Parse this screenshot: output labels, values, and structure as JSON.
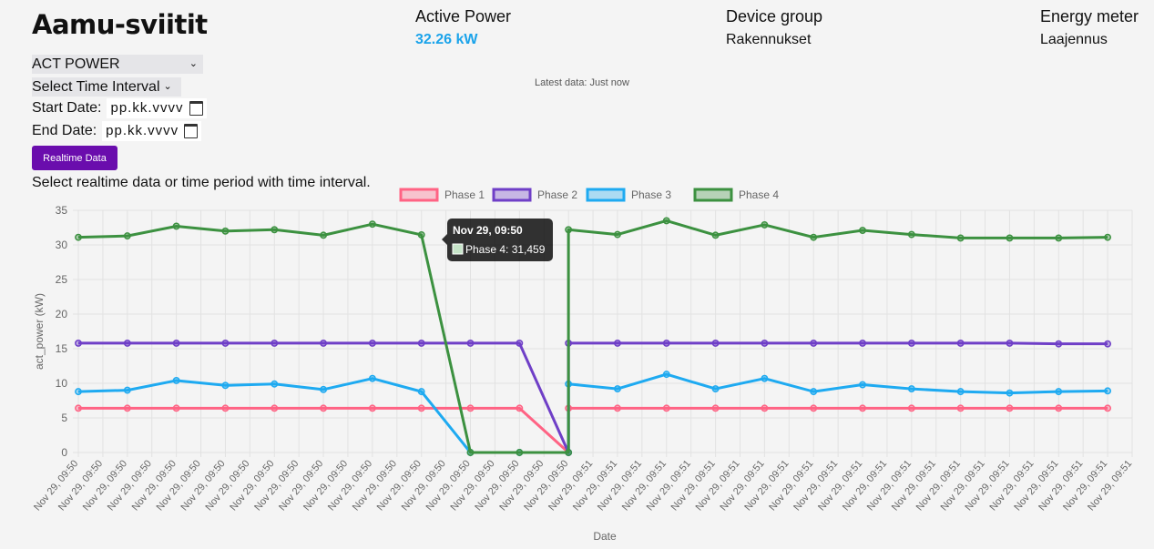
{
  "header": {
    "title": "Aamu-sviitit",
    "active_power_label": "Active Power",
    "active_power_value": "32.26 kW",
    "device_group_label": "Device group",
    "device_group_value": "Rakennukset",
    "energy_meter_label": "Energy meter",
    "energy_meter_value": "Laajennus",
    "latest_data": "Latest data: Just now"
  },
  "controls": {
    "metric_select": "ACT POWER",
    "interval_select": "Select Time Interval",
    "start_label": "Start Date:",
    "start_placeholder": "pp.kk.vvvv",
    "end_label": "End Date:",
    "end_placeholder": "pp.kk.vvvv",
    "realtime_button": "Realtime Data",
    "hint": "Select realtime data or time period with time interval."
  },
  "colors": {
    "accent": "#1aa3ea",
    "button": "#6a0dad",
    "phase1": "#ff6384",
    "phase2": "#6f3fc7",
    "phase3": "#1eaaf1",
    "phase4": "#3c9140"
  },
  "chart_data": {
    "type": "line",
    "xlabel": "Date",
    "ylabel": "act_power (kW)",
    "ylim": [
      0,
      35
    ],
    "yticks": [
      0,
      5,
      10,
      15,
      20,
      25,
      30,
      35
    ],
    "grid": true,
    "legend_position": "top",
    "categories": [
      "Nov 29, 09:50",
      "Nov 29, 09:50",
      "Nov 29, 09:50",
      "Nov 29, 09:50",
      "Nov 29, 09:50",
      "Nov 29, 09:50",
      "Nov 29, 09:50",
      "Nov 29, 09:50",
      "Nov 29, 09:50",
      "Nov 29, 09:50",
      "Nov 29, 09:50",
      "Nov 29, 09:50",
      "Nov 29, 09:50",
      "Nov 29, 09:50",
      "Nov 29, 09:50",
      "Nov 29, 09:50",
      "Nov 29, 09:50",
      "Nov 29, 09:50",
      "Nov 29, 09:50",
      "Nov 29, 09:50",
      "Nov 29, 09:50",
      "Nov 29, 09:51",
      "Nov 29, 09:51",
      "Nov 29, 09:51",
      "Nov 29, 09:51",
      "Nov 29, 09:51",
      "Nov 29, 09:51",
      "Nov 29, 09:51",
      "Nov 29, 09:51",
      "Nov 29, 09:51",
      "Nov 29, 09:51",
      "Nov 29, 09:51",
      "Nov 29, 09:51",
      "Nov 29, 09:51",
      "Nov 29, 09:51",
      "Nov 29, 09:51",
      "Nov 29, 09:51",
      "Nov 29, 09:51",
      "Nov 29, 09:51",
      "Nov 29, 09:51",
      "Nov 29, 09:51",
      "Nov 29, 09:51",
      "Nov 29, 09:51",
      "Nov 29, 09:51"
    ],
    "series": [
      {
        "name": "Phase 1",
        "x": [
          0,
          2,
          4,
          6,
          8,
          10,
          12,
          14,
          16,
          18,
          20,
          20,
          22,
          24,
          26,
          28,
          30,
          32,
          34,
          36,
          38,
          40,
          42
        ],
        "values": [
          6.4,
          6.4,
          6.4,
          6.4,
          6.4,
          6.4,
          6.4,
          6.4,
          6.4,
          6.4,
          0,
          6.4,
          6.4,
          6.4,
          6.4,
          6.4,
          6.4,
          6.4,
          6.4,
          6.4,
          6.4,
          6.4,
          6.4
        ]
      },
      {
        "name": "Phase 2",
        "x": [
          0,
          2,
          4,
          6,
          8,
          10,
          12,
          14,
          16,
          18,
          20,
          20,
          22,
          24,
          26,
          28,
          30,
          32,
          34,
          36,
          38,
          40,
          42
        ],
        "values": [
          15.8,
          15.8,
          15.8,
          15.8,
          15.8,
          15.8,
          15.8,
          15.8,
          15.8,
          15.8,
          0,
          15.8,
          15.8,
          15.8,
          15.8,
          15.8,
          15.8,
          15.8,
          15.8,
          15.8,
          15.8,
          15.7,
          15.7
        ]
      },
      {
        "name": "Phase 3",
        "x": [
          0,
          2,
          4,
          6,
          8,
          10,
          12,
          14,
          16,
          18,
          20,
          20,
          22,
          24,
          26,
          28,
          30,
          32,
          34,
          36,
          38,
          40,
          42
        ],
        "values": [
          8.8,
          9.0,
          10.4,
          9.7,
          9.9,
          9.1,
          10.7,
          8.8,
          0,
          0,
          0,
          9.9,
          9.2,
          11.3,
          9.2,
          10.7,
          8.8,
          9.8,
          9.2,
          8.8,
          8.6,
          8.8,
          8.9
        ]
      },
      {
        "name": "Phase 4",
        "x": [
          0,
          2,
          4,
          6,
          8,
          10,
          12,
          14,
          16,
          18,
          20,
          20,
          22,
          24,
          26,
          28,
          30,
          32,
          34,
          36,
          38,
          40,
          42
        ],
        "values": [
          31.1,
          31.3,
          32.7,
          32.0,
          32.2,
          31.4,
          33.0,
          31.459,
          0,
          0,
          0,
          32.2,
          31.5,
          33.5,
          31.4,
          32.9,
          31.1,
          32.1,
          31.5,
          31.0,
          31.0,
          31.0,
          31.1
        ]
      }
    ],
    "tooltip": {
      "title": "Nov 29, 09:50",
      "label": "Phase 4: 31,459"
    }
  }
}
